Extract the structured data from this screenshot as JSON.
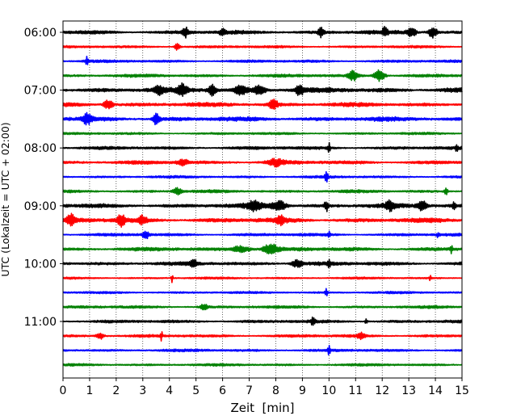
{
  "chart_data": {
    "type": "line",
    "title": "",
    "xlabel": "Zeit  [min]",
    "ylabel": "UTC (Lokalzeit = UTC + 02:00)",
    "xlim": [
      0,
      15
    ],
    "x_ticks": [
      0,
      1,
      2,
      3,
      4,
      5,
      6,
      7,
      8,
      9,
      10,
      11,
      12,
      13,
      14,
      15
    ],
    "x_tick_labels": [
      "0",
      "1",
      "2",
      "3",
      "4",
      "5",
      "6",
      "7",
      "8",
      "9",
      "10",
      "11",
      "12",
      "13",
      "14",
      "15"
    ],
    "y_tick_labels": [
      "06:00",
      "07:00",
      "08:00",
      "09:00",
      "10:00",
      "11:00"
    ],
    "trace_interval_min": 15,
    "vertical_grid": true,
    "grid_style": "dotted",
    "trace_colors": [
      "#000000",
      "#ff0000",
      "#0000ff",
      "#008000"
    ],
    "traces": [
      {
        "start": "06:00",
        "color": "#000000",
        "noise": 0.34,
        "bursts": [
          [
            4.6,
            0.9,
            0.07
          ],
          [
            6.0,
            0.7,
            0.07
          ],
          [
            9.7,
            0.85,
            0.07
          ],
          [
            12.1,
            0.8,
            0.07
          ],
          [
            13.1,
            0.85,
            0.12
          ],
          [
            13.9,
            1.0,
            0.12
          ]
        ]
      },
      {
        "start": "06:15",
        "color": "#ff0000",
        "noise": 0.22,
        "bursts": [
          [
            4.3,
            0.75,
            0.07
          ]
        ]
      },
      {
        "start": "06:30",
        "color": "#0000ff",
        "noise": 0.24,
        "bursts": [
          [
            0.9,
            1.1,
            0.03
          ]
        ]
      },
      {
        "start": "06:45",
        "color": "#008000",
        "noise": 0.27,
        "bursts": [
          [
            10.9,
            0.9,
            0.12
          ],
          [
            11.9,
            1.05,
            0.14
          ]
        ]
      },
      {
        "start": "07:00",
        "color": "#000000",
        "noise": 0.45,
        "bursts": [
          [
            3.6,
            0.8,
            0.1
          ],
          [
            4.5,
            1.05,
            0.1
          ],
          [
            5.6,
            1.0,
            0.1
          ],
          [
            6.7,
            0.9,
            0.15
          ],
          [
            7.4,
            0.85,
            0.15
          ],
          [
            8.9,
            0.95,
            0.1
          ]
        ]
      },
      {
        "start": "07:15",
        "color": "#ff0000",
        "noise": 0.37,
        "bursts": [
          [
            1.7,
            0.9,
            0.12
          ],
          [
            7.9,
            0.9,
            0.12
          ]
        ]
      },
      {
        "start": "07:30",
        "color": "#0000ff",
        "noise": 0.4,
        "bursts": [
          [
            0.9,
            0.85,
            0.12
          ],
          [
            3.5,
            1.05,
            0.1
          ]
        ]
      },
      {
        "start": "07:45",
        "color": "#008000",
        "noise": 0.2,
        "bursts": []
      },
      {
        "start": "08:00",
        "color": "#000000",
        "noise": 0.28,
        "bursts": [
          [
            10.0,
            0.85,
            0.03
          ],
          [
            14.8,
            0.6,
            0.03
          ]
        ]
      },
      {
        "start": "08:15",
        "color": "#ff0000",
        "noise": 0.32,
        "bursts": [
          [
            4.5,
            0.6,
            0.15
          ],
          [
            8.0,
            0.6,
            0.2
          ]
        ]
      },
      {
        "start": "08:30",
        "color": "#0000ff",
        "noise": 0.22,
        "bursts": [
          [
            9.9,
            1.0,
            0.04
          ]
        ]
      },
      {
        "start": "08:45",
        "color": "#008000",
        "noise": 0.26,
        "bursts": [
          [
            4.3,
            0.6,
            0.12
          ],
          [
            14.4,
            0.6,
            0.05
          ]
        ]
      },
      {
        "start": "09:00",
        "color": "#000000",
        "noise": 0.38,
        "bursts": [
          [
            7.2,
            0.8,
            0.2
          ],
          [
            8.1,
            0.9,
            0.2
          ],
          [
            9.9,
            1.0,
            0.05
          ],
          [
            12.3,
            0.8,
            0.12
          ],
          [
            13.5,
            0.9,
            0.12
          ],
          [
            14.7,
            1.0,
            0.04
          ]
        ]
      },
      {
        "start": "09:15",
        "color": "#ff0000",
        "noise": 0.4,
        "bursts": [
          [
            0.3,
            1.05,
            0.1
          ],
          [
            2.2,
            1.1,
            0.1
          ],
          [
            3.0,
            0.7,
            0.1
          ],
          [
            8.2,
            0.75,
            0.1
          ]
        ]
      },
      {
        "start": "09:30",
        "color": "#0000ff",
        "noise": 0.26,
        "bursts": [
          [
            3.1,
            0.8,
            0.08
          ],
          [
            10.0,
            0.75,
            0.03
          ],
          [
            14.1,
            0.5,
            0.03
          ]
        ]
      },
      {
        "start": "09:45",
        "color": "#008000",
        "noise": 0.33,
        "bursts": [
          [
            6.7,
            0.6,
            0.25
          ],
          [
            7.8,
            0.85,
            0.2
          ],
          [
            14.6,
            0.6,
            0.03
          ]
        ]
      },
      {
        "start": "10:00",
        "color": "#000000",
        "noise": 0.33,
        "bursts": [
          [
            4.9,
            0.65,
            0.1
          ],
          [
            8.8,
            0.65,
            0.15
          ],
          [
            10.0,
            0.6,
            0.04
          ]
        ]
      },
      {
        "start": "10:15",
        "color": "#ff0000",
        "noise": 0.18,
        "bursts": [
          [
            4.1,
            0.95,
            0.02
          ],
          [
            13.8,
            0.75,
            0.02
          ]
        ]
      },
      {
        "start": "10:30",
        "color": "#0000ff",
        "noise": 0.2,
        "bursts": [
          [
            9.9,
            0.95,
            0.03
          ]
        ]
      },
      {
        "start": "10:45",
        "color": "#008000",
        "noise": 0.24,
        "bursts": [
          [
            5.3,
            0.5,
            0.1
          ]
        ]
      },
      {
        "start": "11:00",
        "color": "#000000",
        "noise": 0.27,
        "bursts": [
          [
            9.4,
            0.75,
            0.05
          ],
          [
            11.4,
            0.6,
            0.03
          ]
        ]
      },
      {
        "start": "11:15",
        "color": "#ff0000",
        "noise": 0.25,
        "bursts": [
          [
            1.4,
            0.6,
            0.1
          ],
          [
            3.7,
            1.0,
            0.02
          ],
          [
            11.2,
            0.55,
            0.1
          ]
        ]
      },
      {
        "start": "11:30",
        "color": "#0000ff",
        "noise": 0.24,
        "bursts": [
          [
            10.0,
            0.95,
            0.03
          ]
        ]
      },
      {
        "start": "11:45",
        "color": "#008000",
        "noise": 0.22,
        "bursts": []
      }
    ]
  }
}
